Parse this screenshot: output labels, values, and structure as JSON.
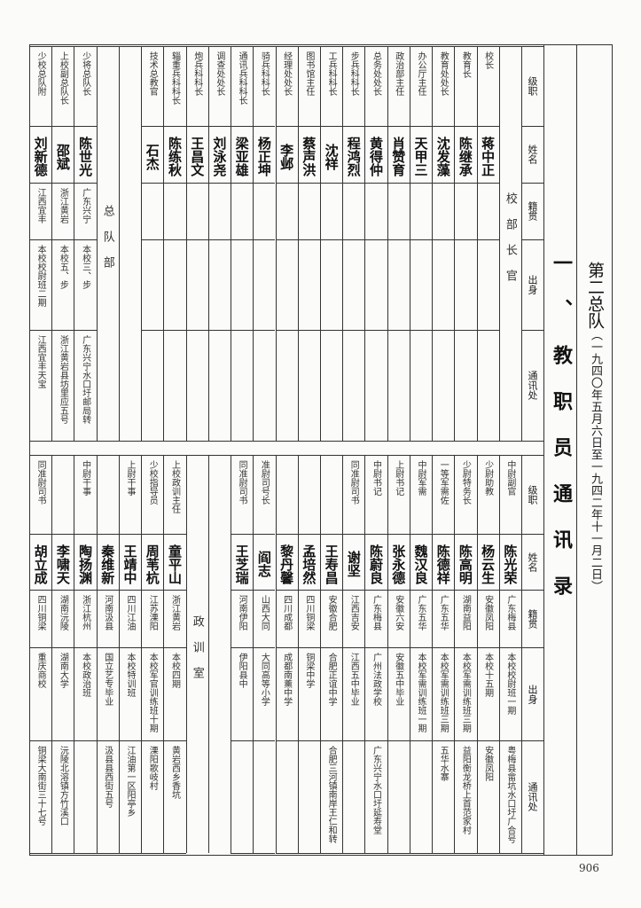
{
  "header": {
    "title": "第二总队",
    "date_range": "（一九四〇年五月六日至一九四二年十一月二日）",
    "section_title": "一、教职员通讯录"
  },
  "field_labels": [
    "级职",
    "姓名",
    "籍贯",
    "出身",
    "通讯处"
  ],
  "top_columns": [
    {
      "section": "校部长官"
    },
    {
      "rank": "校长",
      "name": "蒋中正",
      "origin": "",
      "background": "",
      "address": ""
    },
    {
      "rank": "教育长",
      "name": "陈继承",
      "origin": "",
      "background": "",
      "address": ""
    },
    {
      "rank": "教育处处长",
      "name": "沈发藻",
      "origin": "",
      "background": "",
      "address": ""
    },
    {
      "rank": "办公厅主任",
      "name": "天甲三",
      "origin": "",
      "background": "",
      "address": ""
    },
    {
      "rank": "政治部主任",
      "name": "肖赞育",
      "origin": "",
      "background": "",
      "address": ""
    },
    {
      "rank": "总务处处长",
      "name": "黄得仲",
      "origin": "",
      "background": "",
      "address": ""
    },
    {
      "rank": "步兵科科长",
      "name": "程鸿烈",
      "origin": "",
      "background": "",
      "address": ""
    },
    {
      "rank": "工兵科科长",
      "name": "沈祥",
      "origin": "",
      "background": "",
      "address": ""
    },
    {
      "rank": "图书馆主任",
      "name": "蔡声洪",
      "origin": "",
      "background": "",
      "address": ""
    },
    {
      "rank": "经理处处长",
      "name": "李邺",
      "origin": "",
      "background": "",
      "address": ""
    },
    {
      "rank": "骑兵科科长",
      "name": "杨正坤",
      "origin": "",
      "background": "",
      "address": ""
    },
    {
      "rank": "通讯兵科科长",
      "name": "梁亚雄",
      "origin": "",
      "background": "",
      "address": ""
    },
    {
      "rank": "调查处处长",
      "name": "刘泳尧",
      "origin": "",
      "background": "",
      "address": ""
    },
    {
      "rank": "炮兵科科长",
      "name": "王昌文",
      "origin": "",
      "background": "",
      "address": ""
    },
    {
      "rank": "辎重兵科科长",
      "name": "陈练秋",
      "origin": "",
      "background": "",
      "address": ""
    },
    {
      "rank": "技术总教官",
      "name": "石杰",
      "origin": "",
      "background": "",
      "address": ""
    },
    {
      "blank": true
    },
    {
      "section": "总队部"
    },
    {
      "rank": "少将总队长",
      "name": "陈世光",
      "origin": "广东兴宁",
      "background": "本校三、步",
      "address": "广东兴宁水口圩邮局转"
    },
    {
      "rank": "上校副总队长",
      "name": "邵斌",
      "origin": "浙江黄岩",
      "background": "本校五、步",
      "address": "浙江黄岩县坊里应五号"
    },
    {
      "rank": "少校总队附",
      "name": "刘新德",
      "origin": "江西宜丰",
      "background": "本校校尉班二期",
      "address": "江西宜丰天宝"
    }
  ],
  "bottom_columns": [
    {
      "rank": "中尉副官",
      "name": "陈光荣",
      "origin": "广东梅县",
      "background": "本校校尉班一期",
      "address": "粤梅县畲坑水口圩广合号"
    },
    {
      "rank": "少尉助教",
      "name": "杨云生",
      "origin": "安徽凤阳",
      "background": "本校十五期",
      "address": "安徽凤阳"
    },
    {
      "rank": "少尉特务长",
      "name": "陈高明",
      "origin": "湖南益阳",
      "background": "本校军需训练班三期",
      "address": "益阳衡龙桥上首范家村"
    },
    {
      "rank": "一等军需佐",
      "name": "陈德祥",
      "origin": "广东五华",
      "background": "本校军需训练班三期",
      "address": "五华水寨"
    },
    {
      "rank": "中尉军需",
      "name": "魏汉良",
      "origin": "广东五华",
      "background": "本校军需训练班一期",
      "address": ""
    },
    {
      "rank": "上尉书记",
      "name": "张永德",
      "origin": "安徽六安",
      "background": "安徽五中毕业",
      "address": ""
    },
    {
      "rank": "中尉书记",
      "name": "陈蔚良",
      "origin": "广东梅县",
      "background": "广州法政学校",
      "address": "广东兴宁水口圩延寿堂"
    },
    {
      "rank": "同准尉司书",
      "name": "谢坚",
      "origin": "江西吉安",
      "background": "江西五中毕业",
      "address": ""
    },
    {
      "rank": "",
      "name": "王寿昌",
      "origin": "安徽合肥",
      "background": "合肥正谊中学",
      "address": "合肥三河镇南岸王仁和转"
    },
    {
      "rank": "",
      "name": "孟培然",
      "origin": "四川铜梁",
      "background": "铜梁中学",
      "address": ""
    },
    {
      "rank": "",
      "name": "黎丹馨",
      "origin": "四川成都",
      "background": "成都南薰中学",
      "address": ""
    },
    {
      "rank": "准尉司号长",
      "name": "阎志",
      "origin": "山西大同",
      "background": "大同高等小学",
      "address": ""
    },
    {
      "rank": "同准尉司书",
      "name": "王芝瑞",
      "origin": "河南伊阳",
      "background": "伊阳县中",
      "address": ""
    },
    {
      "blank": true
    },
    {
      "section": "政训室"
    },
    {
      "rank": "上校政训主任",
      "name": "童平山",
      "origin": "浙江黄岩",
      "background": "本校四期",
      "address": "黄岩西乡香坑"
    },
    {
      "rank": "少校指导员",
      "name": "周苇杭",
      "origin": "江苏溧阳",
      "background": "本校军官训练班十期",
      "address": "溧阳歌岐村"
    },
    {
      "rank": "上尉干事",
      "name": "王靖中",
      "origin": "四川江油",
      "background": "本校特训班",
      "address": "江油第一区阳亭乡"
    },
    {
      "rank": "",
      "name": "秦维新",
      "origin": "河南汲县",
      "background": "国立艺专毕业",
      "address": "汲县县西街五号"
    },
    {
      "rank": "中尉干事",
      "name": "陶扬渊",
      "origin": "浙江杭州",
      "background": "本校政治班",
      "address": ""
    },
    {
      "rank": "",
      "name": "李啸天",
      "origin": "湖南沅陵",
      "background": "湖南大学",
      "address": "沅陵北溶镇方竹溪口"
    },
    {
      "rank": "同准尉司书",
      "name": "胡立成",
      "origin": "四川铜梁",
      "background": "重庆商校",
      "address": "铜梁大南街三十七号"
    }
  ],
  "page_number": "906"
}
